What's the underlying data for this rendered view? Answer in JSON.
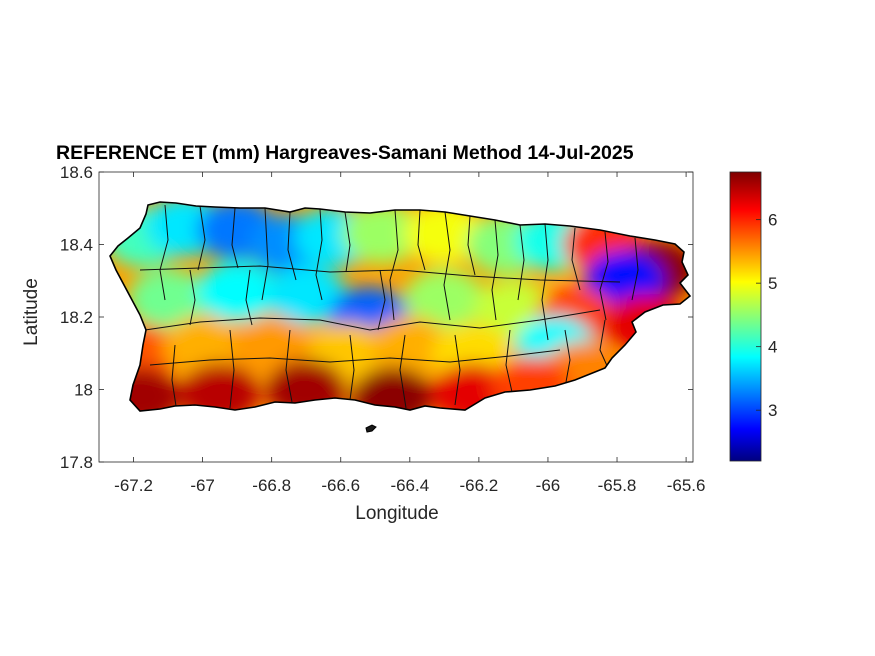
{
  "chart_data": {
    "type": "heatmap",
    "title": "REFERENCE ET (mm) Hargreaves-Samani Method  14-Jul-2025",
    "xlabel": "Longitude",
    "ylabel": "Latitude",
    "xlim": [
      -67.3,
      -65.58
    ],
    "ylim": [
      17.8,
      18.6
    ],
    "xticks": [
      -67.2,
      -67,
      -66.8,
      -66.6,
      -66.4,
      -66.2,
      -66,
      -65.8,
      -65.6
    ],
    "yticks": [
      17.8,
      18,
      18.2,
      18.4,
      18.6
    ],
    "xtick_labels": [
      "-67.2",
      "-67",
      "-66.8",
      "-66.6",
      "-66.4",
      "-66.2",
      "-66",
      "-65.8",
      "-65.6"
    ],
    "ytick_labels": [
      "17.8",
      "18",
      "18.2",
      "18.4",
      "18.6"
    ],
    "colorbar": {
      "colormap": "jet",
      "range": [
        2.2,
        6.75
      ],
      "ticks": [
        3,
        4,
        5,
        6
      ],
      "tick_labels": [
        "3",
        "4",
        "5",
        "6"
      ]
    },
    "grid": false,
    "region_values": [
      {
        "lon": -67.17,
        "lat": 18.42,
        "value": 4.2
      },
      {
        "lon": -67.05,
        "lat": 18.45,
        "value": 3.8
      },
      {
        "lon": -66.9,
        "lat": 18.44,
        "value": 3.3
      },
      {
        "lon": -66.75,
        "lat": 18.4,
        "value": 3.4
      },
      {
        "lon": -66.62,
        "lat": 18.42,
        "value": 3.8
      },
      {
        "lon": -66.48,
        "lat": 18.43,
        "value": 4.6
      },
      {
        "lon": -66.3,
        "lat": 18.43,
        "value": 5.0
      },
      {
        "lon": -66.12,
        "lat": 18.4,
        "value": 4.5
      },
      {
        "lon": -65.98,
        "lat": 18.41,
        "value": 4.0
      },
      {
        "lon": -65.84,
        "lat": 18.4,
        "value": 6.0
      },
      {
        "lon": -65.68,
        "lat": 18.33,
        "value": 6.7
      },
      {
        "lon": -65.78,
        "lat": 18.3,
        "value": 2.8
      },
      {
        "lon": -67.1,
        "lat": 18.25,
        "value": 4.4
      },
      {
        "lon": -66.9,
        "lat": 18.27,
        "value": 3.9
      },
      {
        "lon": -66.7,
        "lat": 18.26,
        "value": 3.8
      },
      {
        "lon": -66.52,
        "lat": 18.2,
        "value": 3.2
      },
      {
        "lon": -66.3,
        "lat": 18.25,
        "value": 4.6
      },
      {
        "lon": -66.1,
        "lat": 18.22,
        "value": 4.8
      },
      {
        "lon": -65.92,
        "lat": 18.2,
        "value": 5.9
      },
      {
        "lon": -65.72,
        "lat": 18.18,
        "value": 6.3
      },
      {
        "lon": -65.98,
        "lat": 18.12,
        "value": 3.9
      },
      {
        "lon": -67.18,
        "lat": 18.1,
        "value": 5.8
      },
      {
        "lon": -67.0,
        "lat": 18.12,
        "value": 5.4
      },
      {
        "lon": -66.8,
        "lat": 18.12,
        "value": 5.5
      },
      {
        "lon": -66.58,
        "lat": 18.1,
        "value": 5.3
      },
      {
        "lon": -66.4,
        "lat": 18.12,
        "value": 5.4
      },
      {
        "lon": -66.22,
        "lat": 18.1,
        "value": 5.2
      },
      {
        "lon": -65.9,
        "lat": 18.05,
        "value": 5.6
      },
      {
        "lon": -67.18,
        "lat": 17.98,
        "value": 6.6
      },
      {
        "lon": -66.95,
        "lat": 17.99,
        "value": 6.5
      },
      {
        "lon": -66.7,
        "lat": 18.0,
        "value": 6.6
      },
      {
        "lon": -66.45,
        "lat": 17.98,
        "value": 6.7
      },
      {
        "lon": -66.22,
        "lat": 17.99,
        "value": 6.3
      },
      {
        "lon": -66.05,
        "lat": 18.01,
        "value": 5.9
      }
    ]
  }
}
